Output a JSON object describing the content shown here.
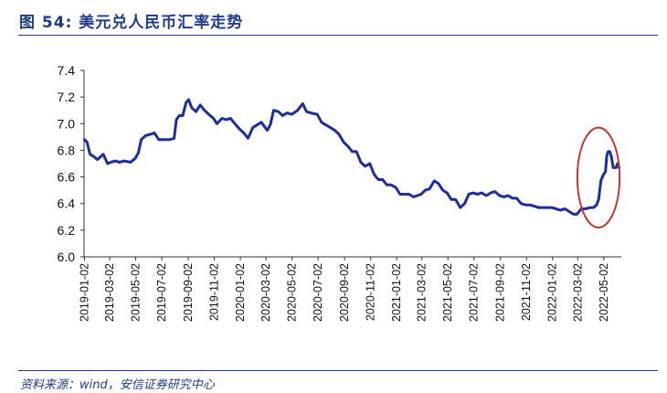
{
  "figure": {
    "title": "图 54: 美元兑人民币汇率走势",
    "source": "资料来源：wind，安信证券研究中心"
  },
  "colors": {
    "line": "#1c2f9a",
    "highlight": "#c0392b",
    "title": "#1f3c88",
    "grid": "#bfbfbf"
  },
  "chart_data": {
    "type": "line",
    "title": "",
    "xlabel": "",
    "ylabel": "",
    "ylim": [
      6.0,
      7.4
    ],
    "yticks": [
      6.0,
      6.2,
      6.4,
      6.6,
      6.8,
      7.0,
      7.2,
      7.4
    ],
    "grid": "none",
    "legend": "none",
    "x_tick_labels": [
      "2019-01-02",
      "2019-03-02",
      "2019-05-02",
      "2019-07-02",
      "2019-09-02",
      "2019-11-02",
      "2020-01-02",
      "2020-03-02",
      "2020-05-02",
      "2020-07-02",
      "2020-09-02",
      "2020-11-02",
      "2021-01-02",
      "2021-03-02",
      "2021-05-02",
      "2021-07-02",
      "2021-09-02",
      "2021-11-02",
      "2022-01-02",
      "2022-03-02",
      "2022-05-02"
    ],
    "xlim": [
      "2019-01-01",
      "2022-06-12"
    ],
    "highlight_ellipse": {
      "x_range": [
        "2022-03-01",
        "2022-06-08"
      ],
      "y_range": [
        6.22,
        6.97
      ]
    },
    "series": [
      {
        "values": [
          [
            "2019-01-02",
            6.88
          ],
          [
            "2019-01-08",
            6.86
          ],
          [
            "2019-01-15",
            6.77
          ],
          [
            "2019-01-25",
            6.75
          ],
          [
            "2019-02-01",
            6.73
          ],
          [
            "2019-02-15",
            6.77
          ],
          [
            "2019-02-25",
            6.7
          ],
          [
            "2019-03-05",
            6.71
          ],
          [
            "2019-03-15",
            6.72
          ],
          [
            "2019-03-25",
            6.71
          ],
          [
            "2019-04-05",
            6.72
          ],
          [
            "2019-04-20",
            6.71
          ],
          [
            "2019-05-01",
            6.74
          ],
          [
            "2019-05-08",
            6.78
          ],
          [
            "2019-05-15",
            6.88
          ],
          [
            "2019-05-25",
            6.91
          ],
          [
            "2019-06-05",
            6.92
          ],
          [
            "2019-06-15",
            6.93
          ],
          [
            "2019-06-25",
            6.88
          ],
          [
            "2019-07-05",
            6.88
          ],
          [
            "2019-07-20",
            6.88
          ],
          [
            "2019-07-31",
            6.89
          ],
          [
            "2019-08-05",
            7.03
          ],
          [
            "2019-08-12",
            7.06
          ],
          [
            "2019-08-20",
            7.06
          ],
          [
            "2019-08-28",
            7.16
          ],
          [
            "2019-09-03",
            7.18
          ],
          [
            "2019-09-10",
            7.12
          ],
          [
            "2019-09-20",
            7.09
          ],
          [
            "2019-09-30",
            7.14
          ],
          [
            "2019-10-10",
            7.1
          ],
          [
            "2019-10-20",
            7.07
          ],
          [
            "2019-10-31",
            7.04
          ],
          [
            "2019-11-08",
            7.0
          ],
          [
            "2019-11-20",
            7.04
          ],
          [
            "2019-11-30",
            7.03
          ],
          [
            "2019-12-10",
            7.04
          ],
          [
            "2019-12-20",
            7.0
          ],
          [
            "2019-12-31",
            6.96
          ],
          [
            "2020-01-10",
            6.93
          ],
          [
            "2020-01-20",
            6.89
          ],
          [
            "2020-01-31",
            6.97
          ],
          [
            "2020-02-10",
            6.99
          ],
          [
            "2020-02-20",
            7.01
          ],
          [
            "2020-03-05",
            6.95
          ],
          [
            "2020-03-12",
            6.99
          ],
          [
            "2020-03-20",
            7.1
          ],
          [
            "2020-03-31",
            7.09
          ],
          [
            "2020-04-10",
            7.06
          ],
          [
            "2020-04-20",
            7.08
          ],
          [
            "2020-05-01",
            7.07
          ],
          [
            "2020-05-15",
            7.1
          ],
          [
            "2020-05-27",
            7.15
          ],
          [
            "2020-06-05",
            7.09
          ],
          [
            "2020-06-15",
            7.08
          ],
          [
            "2020-06-30",
            7.07
          ],
          [
            "2020-07-10",
            7.01
          ],
          [
            "2020-07-20",
            6.99
          ],
          [
            "2020-07-31",
            6.97
          ],
          [
            "2020-08-10",
            6.95
          ],
          [
            "2020-08-20",
            6.92
          ],
          [
            "2020-08-31",
            6.86
          ],
          [
            "2020-09-10",
            6.83
          ],
          [
            "2020-09-20",
            6.79
          ],
          [
            "2020-09-30",
            6.79
          ],
          [
            "2020-10-10",
            6.71
          ],
          [
            "2020-10-20",
            6.68
          ],
          [
            "2020-10-31",
            6.7
          ],
          [
            "2020-11-10",
            6.62
          ],
          [
            "2020-11-20",
            6.58
          ],
          [
            "2020-11-30",
            6.58
          ],
          [
            "2020-12-10",
            6.54
          ],
          [
            "2020-12-20",
            6.54
          ],
          [
            "2020-12-31",
            6.52
          ],
          [
            "2021-01-10",
            6.47
          ],
          [
            "2021-01-20",
            6.47
          ],
          [
            "2021-01-31",
            6.47
          ],
          [
            "2021-02-10",
            6.45
          ],
          [
            "2021-02-20",
            6.46
          ],
          [
            "2021-02-28",
            6.47
          ],
          [
            "2021-03-10",
            6.5
          ],
          [
            "2021-03-20",
            6.51
          ],
          [
            "2021-03-31",
            6.57
          ],
          [
            "2021-04-10",
            6.55
          ],
          [
            "2021-04-20",
            6.5
          ],
          [
            "2021-04-30",
            6.48
          ],
          [
            "2021-05-10",
            6.43
          ],
          [
            "2021-05-20",
            6.43
          ],
          [
            "2021-05-31",
            6.37
          ],
          [
            "2021-06-10",
            6.4
          ],
          [
            "2021-06-20",
            6.47
          ],
          [
            "2021-06-30",
            6.48
          ],
          [
            "2021-07-10",
            6.47
          ],
          [
            "2021-07-20",
            6.48
          ],
          [
            "2021-07-31",
            6.46
          ],
          [
            "2021-08-10",
            6.48
          ],
          [
            "2021-08-20",
            6.49
          ],
          [
            "2021-08-31",
            6.46
          ],
          [
            "2021-09-10",
            6.45
          ],
          [
            "2021-09-20",
            6.46
          ],
          [
            "2021-09-30",
            6.44
          ],
          [
            "2021-10-10",
            6.44
          ],
          [
            "2021-10-20",
            6.4
          ],
          [
            "2021-10-31",
            6.39
          ],
          [
            "2021-11-10",
            6.39
          ],
          [
            "2021-11-20",
            6.38
          ],
          [
            "2021-11-30",
            6.37
          ],
          [
            "2021-12-10",
            6.37
          ],
          [
            "2021-12-20",
            6.37
          ],
          [
            "2021-12-31",
            6.37
          ],
          [
            "2022-01-10",
            6.36
          ],
          [
            "2022-01-20",
            6.35
          ],
          [
            "2022-01-31",
            6.36
          ],
          [
            "2022-02-10",
            6.34
          ],
          [
            "2022-02-20",
            6.32
          ],
          [
            "2022-02-28",
            6.32
          ],
          [
            "2022-03-10",
            6.36
          ],
          [
            "2022-03-20",
            6.36
          ],
          [
            "2022-03-31",
            6.37
          ],
          [
            "2022-04-08",
            6.37
          ],
          [
            "2022-04-15",
            6.39
          ],
          [
            "2022-04-20",
            6.43
          ],
          [
            "2022-04-25",
            6.57
          ],
          [
            "2022-04-30",
            6.61
          ],
          [
            "2022-05-06",
            6.64
          ],
          [
            "2022-05-09",
            6.76
          ],
          [
            "2022-05-12",
            6.79
          ],
          [
            "2022-05-16",
            6.79
          ],
          [
            "2022-05-20",
            6.75
          ],
          [
            "2022-05-24",
            6.67
          ],
          [
            "2022-05-31",
            6.67
          ],
          [
            "2022-06-03",
            6.7
          ],
          [
            "2022-06-07",
            6.67
          ]
        ]
      }
    ]
  }
}
